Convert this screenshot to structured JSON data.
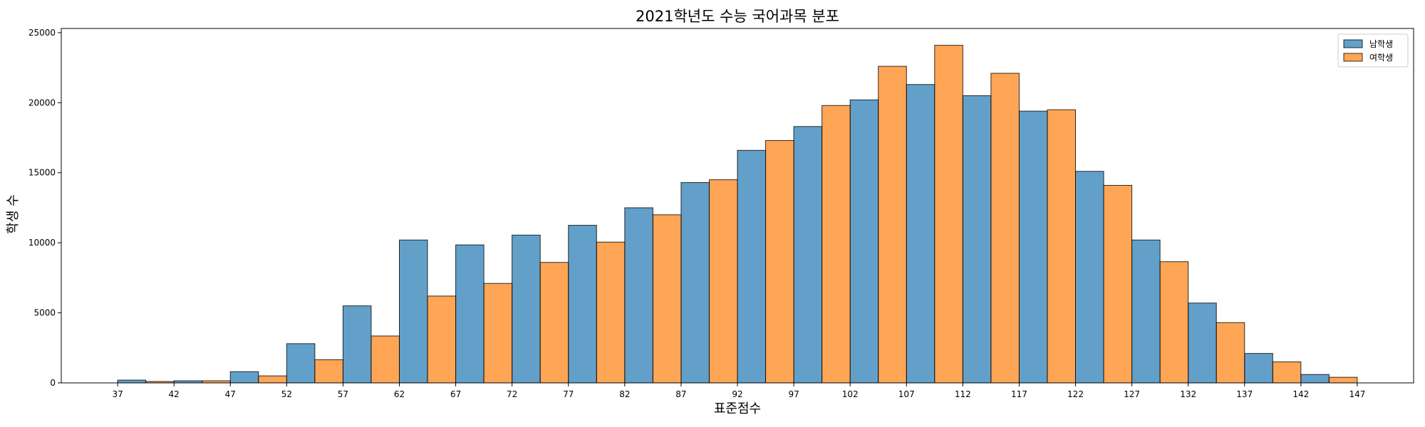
{
  "chart_data": {
    "type": "bar",
    "title": "2021학년도 수능 국어과목 분포",
    "xlabel": "표준점수",
    "ylabel": "학생 수",
    "x_ticks": [
      37,
      42,
      47,
      52,
      57,
      62,
      67,
      72,
      77,
      82,
      87,
      92,
      97,
      102,
      107,
      112,
      117,
      122,
      127,
      132,
      137,
      142,
      147
    ],
    "y_ticks": [
      0,
      5000,
      10000,
      15000,
      20000,
      25000
    ],
    "ylim": [
      0,
      25300
    ],
    "xlim": [
      32,
      152
    ],
    "bin_start": 37,
    "bin_width": 5,
    "grid": false,
    "legend_position": "top-right",
    "series": [
      {
        "name": "남학생",
        "color": "#1f77b4",
        "values": [
          200,
          150,
          800,
          2800,
          5500,
          10200,
          9850,
          10550,
          11250,
          12500,
          14300,
          16600,
          18300,
          20200,
          21300,
          20500,
          19400,
          15100,
          10200,
          5700,
          2100,
          600
        ]
      },
      {
        "name": "여학생",
        "color": "#ff7f0e",
        "values": [
          100,
          150,
          500,
          1650,
          3350,
          6200,
          7100,
          8600,
          10050,
          12000,
          14500,
          17300,
          19800,
          22600,
          24100,
          22100,
          19500,
          14100,
          8650,
          4300,
          1500,
          400
        ]
      }
    ]
  }
}
